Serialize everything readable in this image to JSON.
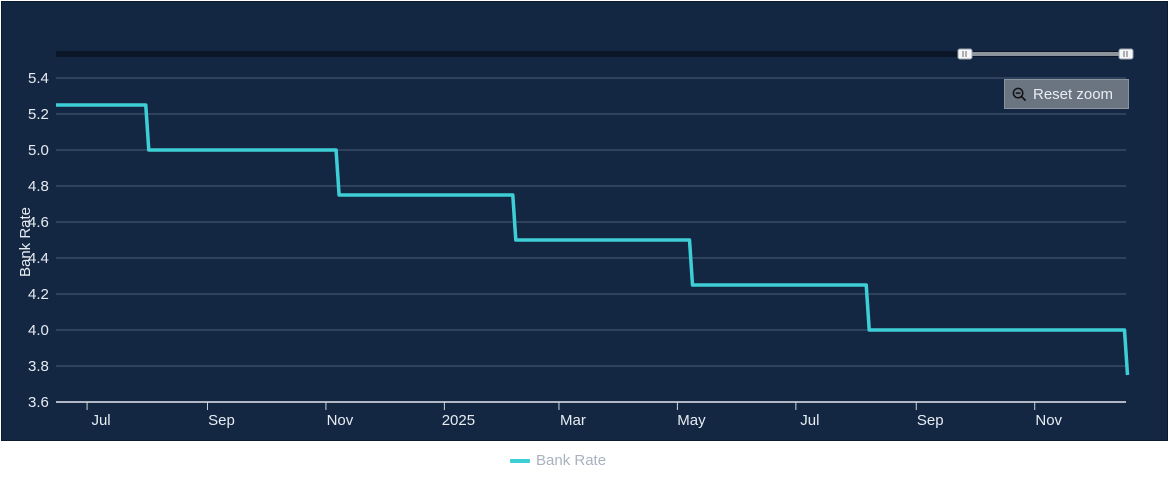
{
  "reset_zoom": {
    "label": "Reset zoom",
    "icon": "zoom-out-icon"
  },
  "legend": {
    "items": [
      {
        "label": "Bank Rate",
        "color": "#3ecfd6"
      }
    ]
  },
  "colors": {
    "background": "#132743",
    "line": "#3ecfd6",
    "grid": "#4a5d78",
    "text": "#e8ecf2"
  },
  "chart_data": {
    "type": "line",
    "step": true,
    "ylabel": "Bank Rate",
    "xlabel": "",
    "ylim": [
      3.6,
      5.4
    ],
    "yticks": [
      3.6,
      3.8,
      4.0,
      4.2,
      4.4,
      4.6,
      4.8,
      5.0,
      5.2,
      5.4
    ],
    "xlim": [
      "2024-06-15",
      "2025-12-18"
    ],
    "xticks": [
      {
        "date": "2024-07-01",
        "label": "Jul"
      },
      {
        "date": "2024-09-01",
        "label": "Sep"
      },
      {
        "date": "2024-11-01",
        "label": "Nov"
      },
      {
        "date": "2025-01-01",
        "label": "2025"
      },
      {
        "date": "2025-03-01",
        "label": "Mar"
      },
      {
        "date": "2025-05-01",
        "label": "May"
      },
      {
        "date": "2025-07-01",
        "label": "Jul"
      },
      {
        "date": "2025-09-01",
        "label": "Sep"
      },
      {
        "date": "2025-11-01",
        "label": "Nov"
      }
    ],
    "grid": true,
    "legend_position": "bottom-center",
    "series": [
      {
        "name": "Bank Rate",
        "color": "#3ecfd6",
        "points": [
          {
            "x": "2024-06-15",
            "y": 5.25
          },
          {
            "x": "2024-08-01",
            "y": 5.0
          },
          {
            "x": "2024-11-07",
            "y": 4.75
          },
          {
            "x": "2025-02-06",
            "y": 4.5
          },
          {
            "x": "2025-05-08",
            "y": 4.25
          },
          {
            "x": "2025-08-07",
            "y": 4.0
          },
          {
            "x": "2025-12-18",
            "y": 3.75
          }
        ]
      }
    ]
  }
}
